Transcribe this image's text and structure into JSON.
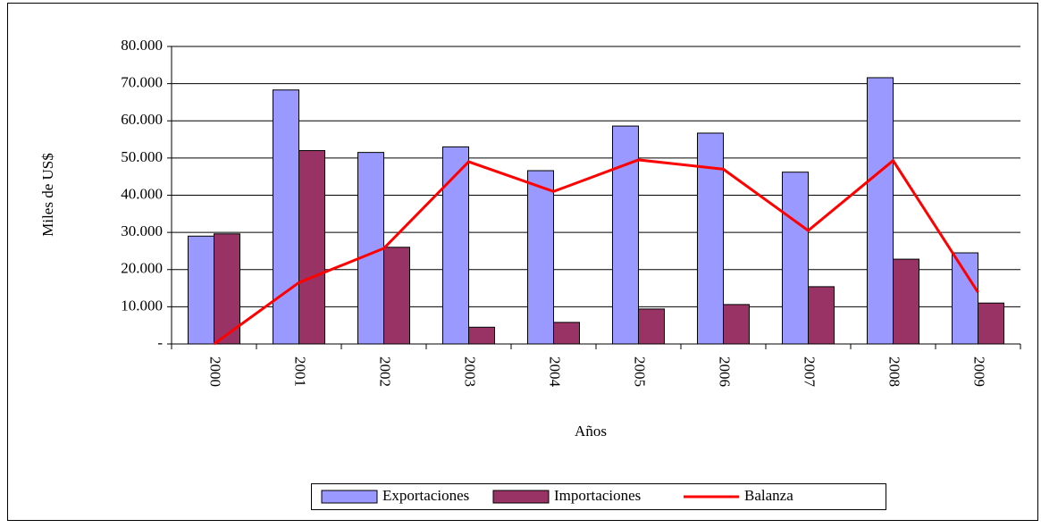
{
  "chart_data": {
    "type": "bar_line",
    "x_label": "Años",
    "y_label": "Miles de US$",
    "categories": [
      "2000",
      "2001",
      "2002",
      "2003",
      "2004",
      "2005",
      "2006",
      "2007",
      "2008",
      "2009"
    ],
    "series": [
      {
        "name": "Exportaciones",
        "type": "bar",
        "color": "#9999ff",
        "values": [
          29000,
          68300,
          51500,
          53000,
          46600,
          58600,
          56700,
          46200,
          71600,
          24500
        ]
      },
      {
        "name": "Importaciones",
        "type": "bar",
        "color": "#993366",
        "values": [
          29600,
          52000,
          26000,
          4500,
          5800,
          9400,
          10600,
          15400,
          22800,
          11000
        ]
      },
      {
        "name": "Balanza",
        "type": "line",
        "color": "#ff0000",
        "values": [
          0,
          16500,
          25700,
          49000,
          41000,
          49500,
          47000,
          30500,
          49300,
          13900
        ]
      }
    ],
    "ylim": [
      0,
      80000
    ],
    "yticks": [
      {
        "value": 0,
        "label": "-"
      },
      {
        "value": 10000,
        "label": "10.000"
      },
      {
        "value": 20000,
        "label": "20.000"
      },
      {
        "value": 30000,
        "label": "30.000"
      },
      {
        "value": 40000,
        "label": "40.000"
      },
      {
        "value": 50000,
        "label": "50.000"
      },
      {
        "value": 60000,
        "label": "60.000"
      },
      {
        "value": 70000,
        "label": "70.000"
      },
      {
        "value": 80000,
        "label": "80.000"
      }
    ],
    "grid": true,
    "legend": "bottom"
  }
}
